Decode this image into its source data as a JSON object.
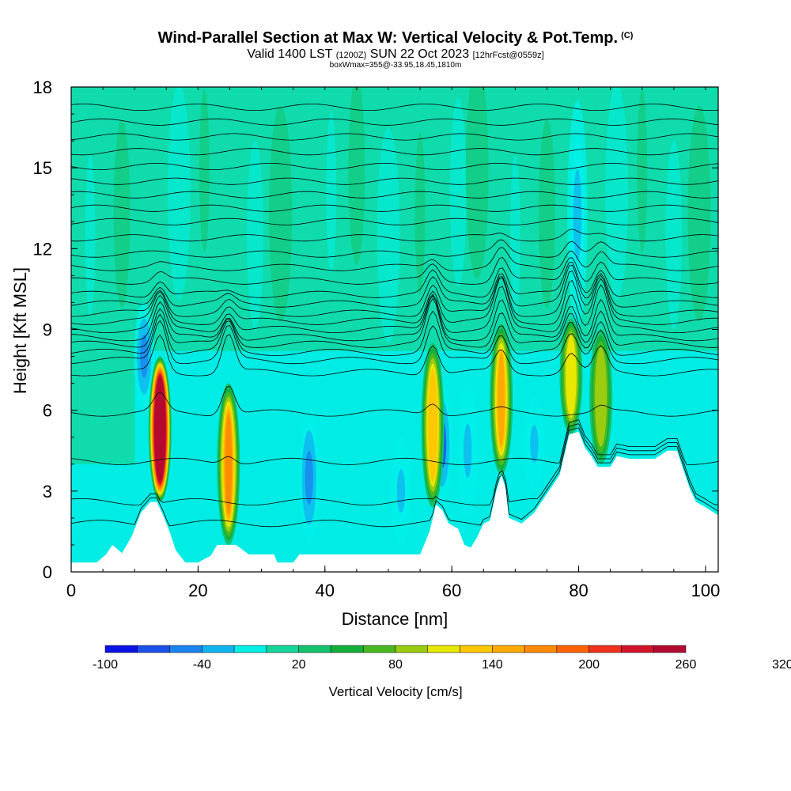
{
  "titles": {
    "main": "Wind-Parallel Section at Max W: Vertical Velocity & Pot.Temp.",
    "copyright": "(C)",
    "valid_prefix": "Valid 1400 LST",
    "valid_z": "(1200Z)",
    "valid_date": "SUN 22 Oct 2023",
    "forecast": "[12hrFcst@0559z]",
    "boxmax": "boxWmax=355@-33.95,18.45,1810m"
  },
  "chart_data": {
    "type": "heatmap",
    "xlabel": "Distance [nm]",
    "ylabel": "Height [Kft MSL]",
    "xlim": [
      0,
      102
    ],
    "ylim": [
      0,
      18
    ],
    "x_ticks": [
      "0",
      "20",
      "40",
      "60",
      "80",
      "100"
    ],
    "y_ticks": [
      "0",
      "3",
      "6",
      "9",
      "12",
      "15",
      "18"
    ],
    "colorbar": {
      "title": "Vertical Velocity [cm/s]",
      "min": -100,
      "step": 20,
      "labels": [
        "-100",
        "-40",
        "20",
        "80",
        "140",
        "200",
        "260",
        "320"
      ],
      "colors": [
        "#0a14e6",
        "#1c50ec",
        "#1a84f0",
        "#10b4f0",
        "#00f0e8",
        "#16d69a",
        "#14c26e",
        "#14b03c",
        "#4ab820",
        "#9ccc10",
        "#e8e800",
        "#ffc800",
        "#ffaa00",
        "#ff8c00",
        "#ff6400",
        "#f0321e",
        "#d2142a",
        "#b40a32"
      ]
    },
    "terrain_kft": [
      [
        0,
        0.35
      ],
      [
        4,
        0.35
      ],
      [
        5.5,
        0.65
      ],
      [
        6.5,
        1.0
      ],
      [
        8,
        0.7
      ],
      [
        9.5,
        1.3
      ],
      [
        11,
        2.2
      ],
      [
        12.5,
        2.6
      ],
      [
        13.5,
        2.6
      ],
      [
        14.5,
        2.1
      ],
      [
        15.5,
        1.5
      ],
      [
        16.5,
        0.8
      ],
      [
        18,
        0.35
      ],
      [
        20,
        0.35
      ],
      [
        22,
        0.6
      ],
      [
        23,
        1.0
      ],
      [
        26,
        1.0
      ],
      [
        28,
        0.65
      ],
      [
        32,
        0.65
      ],
      [
        32.5,
        0.35
      ],
      [
        35,
        0.35
      ],
      [
        36,
        0.65
      ],
      [
        40,
        0.65
      ],
      [
        55,
        0.65
      ],
      [
        56.5,
        1.5
      ],
      [
        57.5,
        2.5
      ],
      [
        58.5,
        2.3
      ],
      [
        59.5,
        1.8
      ],
      [
        61,
        1.6
      ],
      [
        62,
        1.0
      ],
      [
        63,
        0.9
      ],
      [
        64,
        1.3
      ],
      [
        65,
        1.8
      ],
      [
        66,
        1.9
      ],
      [
        67,
        3.0
      ],
      [
        67.8,
        3.6
      ],
      [
        68.5,
        3.1
      ],
      [
        69,
        2.0
      ],
      [
        71,
        1.8
      ],
      [
        73,
        2.2
      ],
      [
        75,
        2.9
      ],
      [
        77,
        3.6
      ],
      [
        78.5,
        5.1
      ],
      [
        80,
        5.2
      ],
      [
        81,
        4.6
      ],
      [
        82,
        4.3
      ],
      [
        83,
        3.9
      ],
      [
        85,
        3.9
      ],
      [
        86,
        4.3
      ],
      [
        88,
        4.2
      ],
      [
        92,
        4.2
      ],
      [
        94,
        4.5
      ],
      [
        95.5,
        4.5
      ],
      [
        96.5,
        3.8
      ],
      [
        97.5,
        3.1
      ],
      [
        98.5,
        2.6
      ],
      [
        100,
        2.4
      ],
      [
        102,
        2.1
      ]
    ],
    "updrafts": [
      {
        "x": 14.0,
        "bottom": 2.6,
        "top": 8.0,
        "peak": 355
      },
      {
        "x": 24.8,
        "bottom": 1.0,
        "top": 7.0,
        "peak": 160
      },
      {
        "x": 57.0,
        "bottom": 2.4,
        "top": 8.5,
        "peak": 130
      },
      {
        "x": 67.8,
        "bottom": 3.6,
        "top": 9.2,
        "peak": 145
      },
      {
        "x": 78.8,
        "bottom": 5.1,
        "top": 9.4,
        "peak": 110
      },
      {
        "x": 83.5,
        "bottom": 4.0,
        "top": 9.0,
        "peak": 95
      }
    ],
    "downdrafts": [
      {
        "x": 11.5,
        "bottom": 6.0,
        "top": 10.0,
        "peak": -60
      },
      {
        "x": 37.5,
        "bottom": 1.0,
        "top": 6.0,
        "peak": -50
      },
      {
        "x": 52.0,
        "bottom": 1.0,
        "top": 5.0,
        "peak": -40
      },
      {
        "x": 58.5,
        "bottom": 2.5,
        "top": 7.0,
        "peak": -70
      },
      {
        "x": 62.5,
        "bottom": 2.0,
        "top": 7.0,
        "peak": -40
      },
      {
        "x": 79.8,
        "bottom": 9.0,
        "top": 17.5,
        "peak": -35
      },
      {
        "x": 73.0,
        "bottom": 3.0,
        "top": 6.5,
        "peak": -30
      }
    ],
    "theta_contour_heights_kft": [
      1.8,
      2.6,
      4.1,
      5.9,
      7.4,
      7.85,
      8.15,
      8.45,
      8.7,
      9.0,
      9.3,
      9.6,
      9.95,
      10.3,
      10.8,
      11.3,
      11.8,
      12.4,
      13.0,
      13.5,
      14.0,
      14.5,
      15.05,
      15.6,
      16.15,
      16.7,
      17.25
    ]
  }
}
